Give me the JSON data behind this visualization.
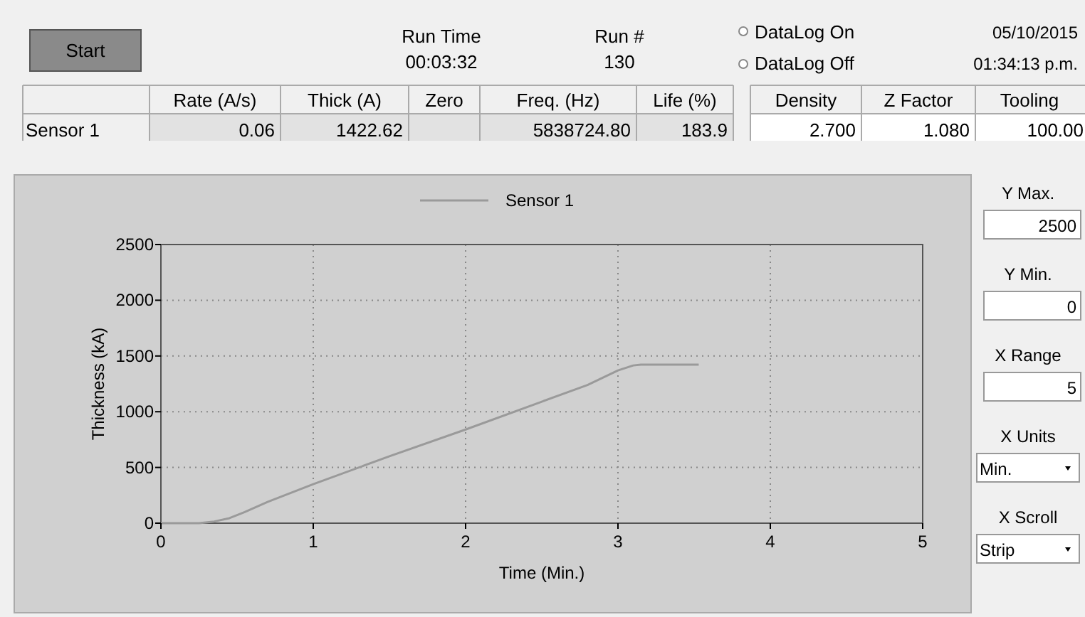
{
  "chart_data": [
    {
      "type": "other",
      "annotations": [
        "Start",
        "Run Time",
        "00:03:32",
        "Run #",
        "130",
        "DataLog On",
        "DataLog Off",
        "05/10/2015",
        "01:34:13 p.m.",
        "Rate (A/s)",
        "Thick (A)",
        "Zero",
        "Freq. (Hz)",
        "Life (%)",
        "Density",
        "Z Factor",
        "Tooling",
        "Sensor 1",
        "0.06",
        "1422.62",
        "5838724.80",
        "183.9",
        "2.700",
        "1.080",
        "100.00"
      ]
    },
    {
      "type": "line",
      "xlabel": "Time (Min.)",
      "ylabel": "Thickness (kA)",
      "xlim": [
        0,
        5
      ],
      "xticks": [
        0,
        1,
        2,
        3,
        4,
        5
      ],
      "ylim": [
        0,
        2500
      ],
      "yticks": [
        0,
        500,
        1000,
        1500,
        2000,
        2500
      ],
      "grid": true,
      "legend": "top",
      "marker": "none",
      "line_style": "solid",
      "series": [
        {
          "name": "Sensor 1",
          "color": "#9a9a9a",
          "x": [
            0,
            0.25,
            0.35,
            0.45,
            0.55,
            0.7,
            1.0,
            1.5,
            2.0,
            2.5,
            2.8,
            3.0,
            3.1,
            3.15,
            3.53
          ],
          "values": [
            0,
            0,
            15,
            45,
            100,
            190,
            350,
            600,
            840,
            1090,
            1240,
            1370,
            1415,
            1422.6,
            1422.6
          ]
        }
      ]
    },
    {
      "type": "other",
      "annotations": [
        "Y Max.",
        "2500",
        "Y Min.",
        "0",
        "X Range",
        "5",
        "X Units",
        "Min.",
        "X Scroll",
        "Strip"
      ]
    }
  ]
}
